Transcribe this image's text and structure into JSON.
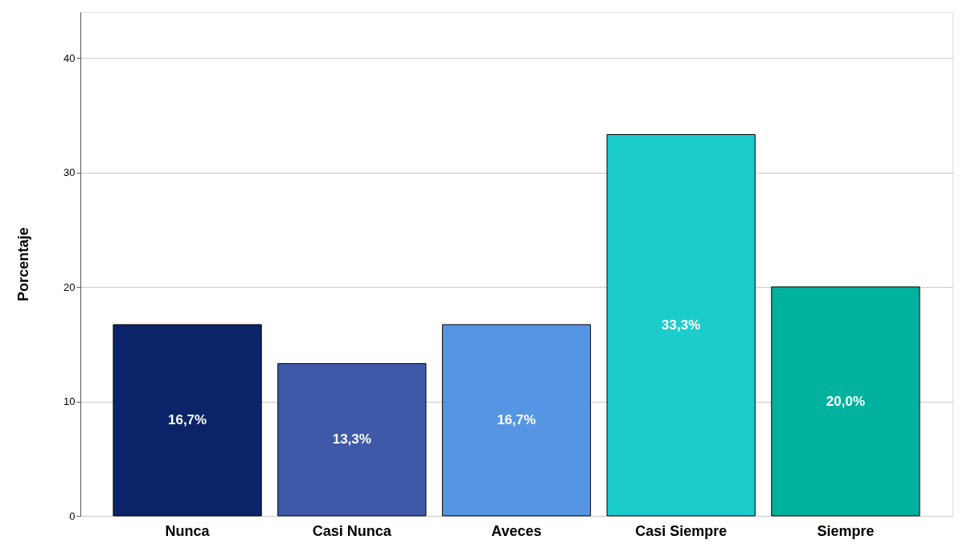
{
  "chart_data": {
    "type": "bar",
    "ylabel": "Porcentaje",
    "categories": [
      "Nunca",
      "Casi Nunca",
      "Aveces",
      "Casi Siempre",
      "Siempre"
    ],
    "values": [
      16.7,
      13.3,
      16.7,
      33.3,
      20.0
    ],
    "colors": [
      "#0b2469",
      "#3e59a8",
      "#5595e3",
      "#1ccccc",
      "#00b19f"
    ],
    "value_labels": [
      "16,7%",
      "13,3%",
      "16,7%",
      "33,3%",
      "20,0%"
    ],
    "ylim": [
      0,
      44
    ],
    "yticks": [
      0,
      10,
      20,
      30,
      40
    ],
    "grid": "y"
  }
}
